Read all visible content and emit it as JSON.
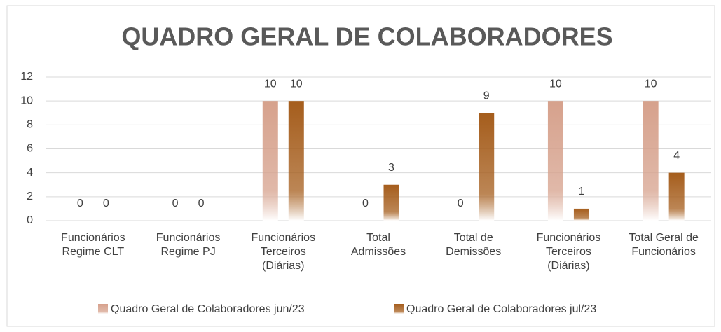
{
  "chart_data": {
    "type": "bar",
    "title": "QUADRO GERAL DE COLABORADORES",
    "categories": [
      "Funcionários Regime CLT",
      "Funcionários Regime PJ",
      "Funcionários Terceiros (Diárias)",
      "Total Admissões",
      "Total de Demissões",
      "Funcionários Terceiros (Diárias)",
      "Total Geral de Funcionários"
    ],
    "series": [
      {
        "name": "Quadro Geral de Colaboradores jun/23",
        "color": "#d6a18c",
        "values": [
          0,
          0,
          10,
          0,
          0,
          10,
          10
        ]
      },
      {
        "name": "Quadro Geral de Colaboradores jul/23",
        "color": "#a55d1c",
        "values": [
          0,
          0,
          10,
          3,
          9,
          1,
          4
        ]
      }
    ],
    "ylim": [
      0,
      12
    ],
    "yticks": [
      0,
      2,
      4,
      6,
      8,
      10,
      12
    ],
    "grid": true,
    "legend": "bottom"
  }
}
